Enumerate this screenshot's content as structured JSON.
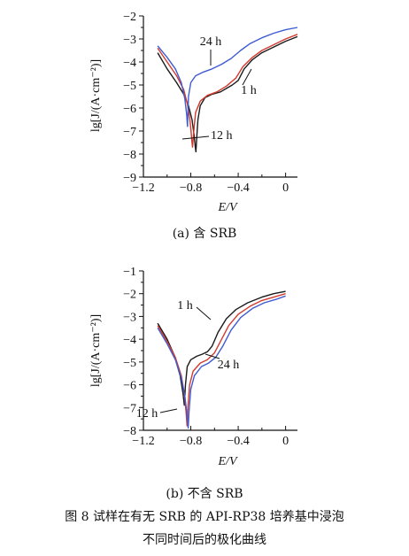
{
  "caption": {
    "line1": "图 8   试样在有无 SRB 的 API-RP38 培养基中浸泡",
    "line2": "不同时间后的极化曲线"
  },
  "chart_data": [
    {
      "type": "line",
      "subcaption": "(a)   含 SRB",
      "xlabel": "E/V",
      "ylabel": "lg[J/(A·cm⁻²)]",
      "xlim": [
        -1.2,
        0.1
      ],
      "ylim": [
        -9,
        -2
      ],
      "xticks": [
        -1.2,
        -0.8,
        -0.4,
        0
      ],
      "xtick_labels": [
        "−1.2",
        "−0.8",
        "−0.4",
        "0"
      ],
      "yticks": [
        -9,
        -8,
        -7,
        -6,
        -5,
        -4,
        -3,
        -2
      ],
      "ytick_labels": [
        "−9",
        "−8",
        "−7",
        "−6",
        "−5",
        "−4",
        "−3",
        "−2"
      ],
      "series": [
        {
          "name": "1 h",
          "color": "#1a1a1a",
          "x": [
            -1.08,
            -1.0,
            -0.92,
            -0.86,
            -0.82,
            -0.79,
            -0.772,
            -0.762,
            -0.757,
            -0.75,
            -0.74,
            -0.72,
            -0.68,
            -0.62,
            -0.55,
            -0.5,
            -0.45,
            -0.4,
            -0.35,
            -0.28,
            -0.2,
            -0.1,
            0,
            0.1
          ],
          "y": [
            -3.6,
            -4.3,
            -4.9,
            -5.4,
            -5.9,
            -6.5,
            -7.2,
            -7.7,
            -7.9,
            -7.3,
            -6.5,
            -5.9,
            -5.55,
            -5.4,
            -5.3,
            -5.15,
            -5.0,
            -4.8,
            -4.3,
            -3.9,
            -3.6,
            -3.35,
            -3.1,
            -2.9
          ]
        },
        {
          "name": "12 h",
          "color": "#d23a2e",
          "x": [
            -1.08,
            -1.0,
            -0.92,
            -0.86,
            -0.83,
            -0.81,
            -0.798,
            -0.79,
            -0.785,
            -0.775,
            -0.76,
            -0.72,
            -0.66,
            -0.58,
            -0.5,
            -0.42,
            -0.36,
            -0.28,
            -0.2,
            -0.1,
            0,
            0.1
          ],
          "y": [
            -3.4,
            -4.0,
            -4.6,
            -5.2,
            -5.8,
            -6.4,
            -7.0,
            -7.5,
            -7.7,
            -7.0,
            -6.2,
            -5.7,
            -5.45,
            -5.3,
            -5.05,
            -4.7,
            -4.2,
            -3.8,
            -3.5,
            -3.25,
            -3.0,
            -2.8
          ]
        },
        {
          "name": "24 h",
          "color": "#3f5bd0",
          "x": [
            -1.08,
            -1.0,
            -0.93,
            -0.88,
            -0.85,
            -0.835,
            -0.828,
            -0.82,
            -0.8,
            -0.76,
            -0.7,
            -0.62,
            -0.54,
            -0.46,
            -0.38,
            -0.3,
            -0.2,
            -0.1,
            0,
            0.1
          ],
          "y": [
            -3.3,
            -3.8,
            -4.3,
            -4.9,
            -5.6,
            -6.3,
            -6.8,
            -5.5,
            -4.9,
            -4.6,
            -4.45,
            -4.3,
            -4.1,
            -3.85,
            -3.5,
            -3.2,
            -2.95,
            -2.75,
            -2.6,
            -2.5
          ]
        }
      ],
      "annotations": [
        "24 h",
        "1 h",
        "12 h"
      ]
    },
    {
      "type": "line",
      "subcaption": "(b)   不含 SRB",
      "xlabel": "E/V",
      "ylabel": "lg[J/(A·cm⁻²)]",
      "xlim": [
        -1.2,
        0.1
      ],
      "ylim": [
        -8,
        -1
      ],
      "xticks": [
        -1.2,
        -0.8,
        -0.4,
        0
      ],
      "xtick_labels": [
        "−1.2",
        "−0.8",
        "−0.4",
        "0"
      ],
      "yticks": [
        -8,
        -7,
        -6,
        -5,
        -4,
        -3,
        -2,
        -1
      ],
      "ytick_labels": [
        "−8",
        "−7",
        "−6",
        "−5",
        "−4",
        "−3",
        "−2",
        "−1"
      ],
      "series": [
        {
          "name": "1 h",
          "color": "#1a1a1a",
          "x": [
            -1.08,
            -1.0,
            -0.94,
            -0.89,
            -0.865,
            -0.855,
            -0.845,
            -0.83,
            -0.8,
            -0.75,
            -0.7,
            -0.66,
            -0.62,
            -0.57,
            -0.5,
            -0.42,
            -0.32,
            -0.2,
            -0.1,
            0
          ],
          "y": [
            -3.3,
            -4.0,
            -4.7,
            -5.6,
            -6.4,
            -6.9,
            -6.0,
            -5.2,
            -4.9,
            -4.75,
            -4.65,
            -4.55,
            -4.3,
            -3.7,
            -3.1,
            -2.7,
            -2.4,
            -2.15,
            -2.0,
            -1.9
          ]
        },
        {
          "name": "12 h",
          "color": "#d23a2e",
          "x": [
            -1.08,
            -1.0,
            -0.93,
            -0.88,
            -0.855,
            -0.84,
            -0.832,
            -0.825,
            -0.81,
            -0.78,
            -0.72,
            -0.66,
            -0.6,
            -0.55,
            -0.48,
            -0.4,
            -0.3,
            -0.2,
            -0.1,
            0
          ],
          "y": [
            -3.4,
            -4.1,
            -4.8,
            -5.6,
            -6.4,
            -7.2,
            -7.8,
            -7.0,
            -6.0,
            -5.4,
            -5.05,
            -4.9,
            -4.6,
            -4.1,
            -3.4,
            -2.9,
            -2.55,
            -2.3,
            -2.15,
            -2.0
          ]
        },
        {
          "name": "24 h",
          "color": "#3f5bd0",
          "x": [
            -1.08,
            -1.0,
            -0.93,
            -0.88,
            -0.85,
            -0.835,
            -0.822,
            -0.815,
            -0.8,
            -0.77,
            -0.71,
            -0.65,
            -0.59,
            -0.53,
            -0.46,
            -0.38,
            -0.28,
            -0.18,
            -0.08,
            0
          ],
          "y": [
            -3.5,
            -4.2,
            -4.9,
            -5.7,
            -6.5,
            -7.2,
            -7.9,
            -7.2,
            -6.2,
            -5.6,
            -5.2,
            -5.05,
            -4.8,
            -4.3,
            -3.6,
            -3.05,
            -2.65,
            -2.4,
            -2.25,
            -2.1
          ]
        }
      ],
      "annotations": [
        "1 h",
        "24 h",
        "12 h"
      ]
    }
  ]
}
